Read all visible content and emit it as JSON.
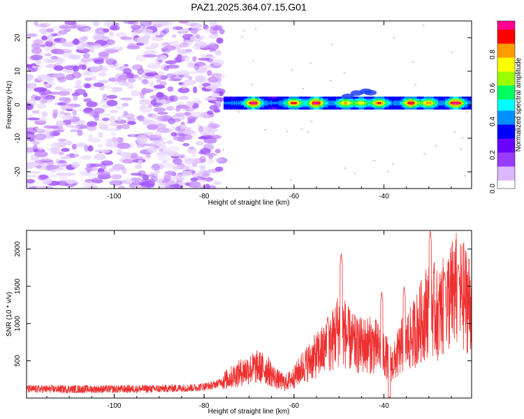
{
  "title": "PAZ1.2025.364.07.15.G01",
  "chart_data": [
    {
      "type": "heatmap",
      "name": "spectrogram",
      "xlabel": "Height of straight line (km)",
      "ylabel": "Frequency (Hz)",
      "xlim": [
        -119.5,
        -20.5
      ],
      "ylim": [
        -25,
        25
      ],
      "xticks": [
        -100,
        -80,
        -60,
        -40
      ],
      "yticks": [
        -20,
        -10,
        0,
        10,
        20
      ],
      "colorbar": {
        "label": "Normalized spectral amplitude",
        "range": [
          0,
          1
        ],
        "ticks": [
          0.0,
          0.2,
          0.4,
          0.6,
          0.8
        ],
        "colors": [
          "#ffffff",
          "#dcb8ff",
          "#9a3cff",
          "#6a00ff",
          "#0000ff",
          "#0090ff",
          "#00ffff",
          "#00ff60",
          "#9cff00",
          "#ffff00",
          "#ff9c00",
          "#ff0000",
          "#ff0090"
        ]
      },
      "noise_region": {
        "x_from": -119.5,
        "x_to": -76,
        "amplitude_range": [
          0.0,
          0.22
        ]
      },
      "signal_band": {
        "x_from": -75.5,
        "x_to": -20.5,
        "center_hz": 0.5,
        "half_width_hz": 1.2,
        "peaks": [
          {
            "x": -69,
            "amp": 0.85
          },
          {
            "x": -60,
            "amp": 0.7
          },
          {
            "x": -55,
            "amp": 0.9
          },
          {
            "x": -48.5,
            "amp": 0.55
          },
          {
            "x": -45,
            "amp": 0.45
          },
          {
            "x": -41,
            "amp": 0.65
          },
          {
            "x": -34,
            "amp": 0.75
          },
          {
            "x": -30,
            "amp": 0.6
          },
          {
            "x": -24,
            "amp": 0.95
          }
        ]
      }
    },
    {
      "type": "line",
      "name": "snr",
      "xlabel": "Height of straight line (km)",
      "ylabel": "SNR (10 * v/v)",
      "xlim": [
        -119.5,
        -20.5
      ],
      "ylim": [
        0,
        2250
      ],
      "xticks": [
        -100,
        -80,
        -60,
        -40
      ],
      "yticks": [
        500,
        1000,
        1500,
        2000
      ],
      "color": "#ee3030",
      "anchors": [
        [
          -119.5,
          120
        ],
        [
          -110,
          120
        ],
        [
          -100,
          120
        ],
        [
          -90,
          125
        ],
        [
          -82,
          140
        ],
        [
          -78,
          170
        ],
        [
          -74,
          280
        ],
        [
          -71,
          370
        ],
        [
          -68,
          420
        ],
        [
          -66,
          380
        ],
        [
          -64,
          260
        ],
        [
          -62,
          200
        ],
        [
          -60,
          280
        ],
        [
          -58,
          420
        ],
        [
          -56,
          520
        ],
        [
          -54,
          620
        ],
        [
          -52,
          700
        ],
        [
          -50.5,
          900
        ],
        [
          -49.5,
          950
        ],
        [
          -48,
          800
        ],
        [
          -46,
          700
        ],
        [
          -44,
          720
        ],
        [
          -42,
          700
        ],
        [
          -40,
          600
        ],
        [
          -39,
          500
        ],
        [
          -38,
          450
        ],
        [
          -36,
          700
        ],
        [
          -34,
          800
        ],
        [
          -32,
          1000
        ],
        [
          -31,
          1100
        ],
        [
          -30,
          1250
        ],
        [
          -29,
          1200
        ],
        [
          -28,
          1100
        ],
        [
          -26,
          1300
        ],
        [
          -24,
          1450
        ],
        [
          -22,
          1350
        ],
        [
          -20.5,
          1250
        ]
      ],
      "spikes": [
        {
          "x": -49.5,
          "value": 1940
        },
        {
          "x": -29.7,
          "value": 2250
        },
        {
          "x": -40.5,
          "value": 1430
        },
        {
          "x": -35.5,
          "value": 1500
        },
        {
          "x": -23.5,
          "value": 1800
        },
        {
          "x": -52.5,
          "value": 1100
        },
        {
          "x": -38.8,
          "value": 30
        },
        {
          "x": -26.5,
          "value": 1700
        }
      ]
    }
  ]
}
